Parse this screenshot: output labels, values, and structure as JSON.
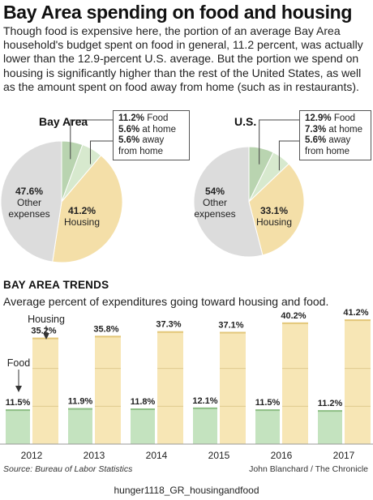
{
  "header": {
    "title": "Bay Area spending on food and housing",
    "intro": "Though food is expensive here, the portion of an average Bay Area household's budget spent on food in general, 11.2 percent, was actually lower than the 12.9-percent U.S. average. But the portion we spend on housing is significantly higher than the rest of the United States, as well as the amount spent on food away from home (such as in restaurants)."
  },
  "colors": {
    "food": "#b9d4b0",
    "food_away": "#d7e9ce",
    "housing": "#f4dfa8",
    "other": "#dcdcdc",
    "bar_food": "#c4e3bf",
    "bar_housing": "#f7e6b5"
  },
  "chart_data": [
    {
      "type": "pie",
      "title": "Bay Area",
      "slices": [
        {
          "name": "Food at home",
          "value": 5.6
        },
        {
          "name": "Food away from home",
          "value": 5.6
        },
        {
          "name": "Housing",
          "value": 41.2
        },
        {
          "name": "Other expenses",
          "value": 47.6
        }
      ],
      "labels": {
        "housing_value": "41.2%",
        "housing_name": "Housing",
        "other_value": "47.6%",
        "other_name_1": "Other",
        "other_name_2": "expenses"
      },
      "legend": {
        "food_value": "11.2%",
        "food_text": "Food",
        "home_value": "5.6%",
        "home_text": "at home",
        "away_value": "5.6%",
        "away_text_1": "away",
        "away_text_2": "from home"
      }
    },
    {
      "type": "pie",
      "title": "U.S.",
      "slices": [
        {
          "name": "Food at home",
          "value": 7.3
        },
        {
          "name": "Food away from home",
          "value": 5.6
        },
        {
          "name": "Housing",
          "value": 33.1
        },
        {
          "name": "Other expenses",
          "value": 54
        }
      ],
      "labels": {
        "housing_value": "33.1%",
        "housing_name": "Housing",
        "other_value": "54%",
        "other_name_1": "Other",
        "other_name_2": "expenses"
      },
      "legend": {
        "food_value": "12.9%",
        "food_text": "Food",
        "home_value": "7.3%",
        "home_text": "at home",
        "away_value": "5.6%",
        "away_text_1": "away",
        "away_text_2": "from home"
      }
    },
    {
      "type": "bar",
      "title": "BAY AREA TRENDS",
      "subtitle": "Average percent of expenditures going toward housing and food.",
      "categories": [
        "2012",
        "2013",
        "2014",
        "2015",
        "2016",
        "2017"
      ],
      "series": [
        {
          "name": "Food",
          "values": [
            11.5,
            11.9,
            11.8,
            12.1,
            11.5,
            11.2
          ],
          "labels": [
            "11.5%",
            "11.9%",
            "11.8%",
            "12.1%",
            "11.5%",
            "11.2%"
          ]
        },
        {
          "name": "Housing",
          "values": [
            35.2,
            35.8,
            37.3,
            37.1,
            40.2,
            41.2
          ],
          "labels": [
            "35.2%",
            "35.8%",
            "37.3%",
            "37.1%",
            "40.2%",
            "41.2%"
          ]
        }
      ],
      "ylim": [
        0,
        45
      ]
    }
  ],
  "footer": {
    "source": "Source: Bureau of Labor Statistics",
    "credit": "John Blanchard / The Chronicle",
    "filename": "hunger1118_GR_housingandfood"
  }
}
